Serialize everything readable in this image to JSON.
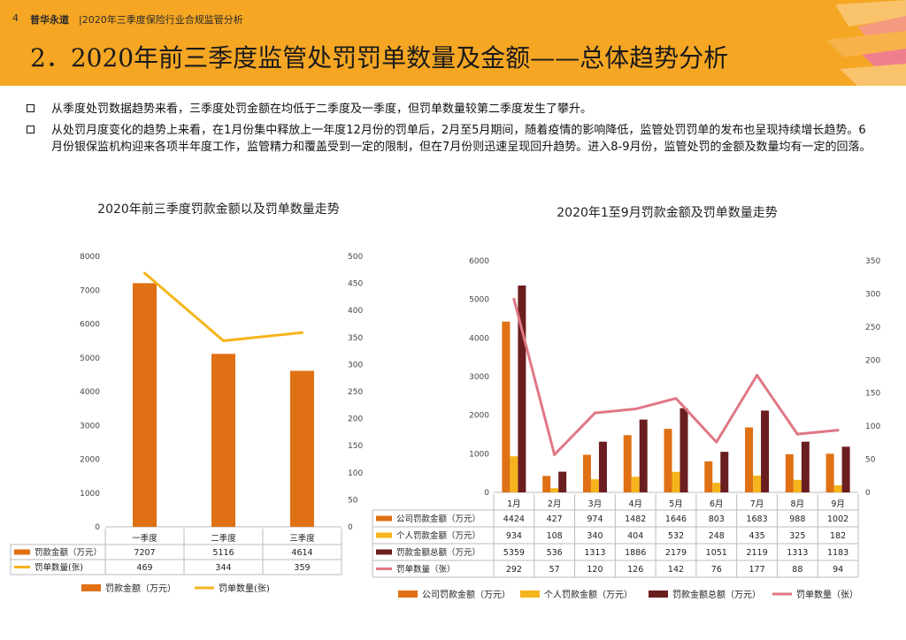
{
  "header": {
    "page_number": "4",
    "brand": "普华永道",
    "report_name": "|2020年三季度保险行业合规监管分析",
    "title": "2．2020年前三季度监管处罚罚单数量及金额——总体趋势分析"
  },
  "bullets": [
    "从季度处罚数据趋势来看，三季度处罚金额在均低于二季度及一季度，但罚单数量较第二季度发生了攀升。",
    "从处罚月度变化的趋势上来看，在1月份集中释放上一年度12月份的罚单后，2月至5月期间，随着疫情的影响降低，监管处罚罚单的发布也呈现持续增长趋势。6月份银保监机构迎来各项半年度工作，监管精力和覆盖受到一定的限制，但在7月份则迅速呈现回升趋势。进入8-9月份，监管处罚的金额及数量均有一定的回落。"
  ],
  "colors": {
    "header_bg": "#F5A623",
    "orange": "#E07014",
    "yellow": "#F6B41C",
    "dark_red": "#6B1E20",
    "pink": "#E07785"
  },
  "chart_data": [
    {
      "type": "bar",
      "title": "2020年前三季度罚款金额以及罚单数量走势",
      "categories": [
        "一季度",
        "二季度",
        "三季度"
      ],
      "series": [
        {
          "name": "罚款金额（万元）",
          "legend_label": "罚款金额（万元）",
          "type": "bar",
          "axis": "left",
          "color": "#E07014",
          "values": [
            7207,
            5116,
            4614
          ]
        },
        {
          "name": "罚单数量(张)",
          "legend_label": "罚单数量(张)",
          "type": "line",
          "axis": "right",
          "color": "#F6B41C",
          "values": [
            469,
            344,
            359
          ]
        }
      ],
      "y_left": {
        "min": 0,
        "max": 8000,
        "ticks": [
          "0",
          "1000",
          "2000",
          "3000",
          "4000",
          "5000",
          "6000",
          "7000",
          "8000"
        ]
      },
      "y_right": {
        "min": 0,
        "max": 500,
        "ticks": [
          "0",
          "50",
          "100",
          "150",
          "200",
          "250",
          "300",
          "350",
          "400",
          "450",
          "500"
        ]
      }
    },
    {
      "type": "bar",
      "title": "2020年1至9月罚款金额及罚单数量走势",
      "categories": [
        "1月",
        "2月",
        "3月",
        "4月",
        "5月",
        "6月",
        "7月",
        "8月",
        "9月"
      ],
      "series": [
        {
          "name": "公司罚款金额（万元）",
          "legend_label": "公司罚款金额（万元）",
          "type": "bar",
          "axis": "left",
          "color": "#E07014",
          "values": [
            4424,
            427,
            974,
            1482,
            1646,
            803,
            1683,
            988,
            1002
          ]
        },
        {
          "name": "个人罚款金额（万元）",
          "legend_label": "个人罚款金额（万元）",
          "type": "bar",
          "axis": "left",
          "color": "#F6B41C",
          "values": [
            934,
            108,
            340,
            404,
            532,
            248,
            435,
            325,
            182
          ]
        },
        {
          "name": "罚款金额总额（万元）",
          "legend_label": "罚款金额总额（万元）",
          "type": "bar",
          "axis": "left",
          "color": "#6B1E20",
          "values": [
            5359,
            536,
            1313,
            1886,
            2179,
            1051,
            2119,
            1313,
            1183
          ]
        },
        {
          "name": "罚单数量（张）",
          "legend_label": "罚单数量（张）",
          "type": "line",
          "axis": "right",
          "color": "#E07785",
          "values": [
            292,
            57,
            120,
            126,
            142,
            76,
            177,
            88,
            94
          ]
        }
      ],
      "y_left": {
        "min": 0,
        "max": 6000,
        "ticks": [
          "0",
          "1000",
          "2000",
          "3000",
          "4000",
          "5000",
          "6000"
        ]
      },
      "y_right": {
        "min": 0,
        "max": 350,
        "ticks": [
          "0",
          "50",
          "100",
          "150",
          "200",
          "250",
          "300",
          "350"
        ]
      }
    }
  ]
}
